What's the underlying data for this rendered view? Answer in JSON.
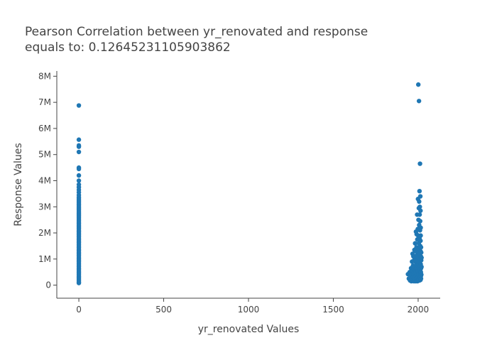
{
  "chart_data": {
    "type": "scatter",
    "title_lines": [
      "Pearson Correlation between yr_renovated and response",
      "equals to: 0.12645231105903862"
    ],
    "xlabel": "yr_renovated Values",
    "ylabel": "Response Values",
    "xlim": [
      -130,
      2130
    ],
    "ylim": [
      -500000,
      8200000
    ],
    "x_ticks": [
      0,
      500,
      1000,
      1500,
      2000
    ],
    "x_tick_labels": [
      "0",
      "500",
      "1000",
      "1500",
      "2000"
    ],
    "y_ticks": [
      0,
      1000000,
      2000000,
      3000000,
      4000000,
      5000000,
      6000000,
      7000000,
      8000000
    ],
    "y_tick_labels": [
      "0",
      "1M",
      "2M",
      "3M",
      "4M",
      "5M",
      "6M",
      "7M",
      "8M"
    ],
    "grid": false,
    "legend": "none",
    "marker_color": "#1f77b4",
    "series": [
      {
        "points": [
          [
            0,
            80000
          ],
          [
            0,
            120000
          ],
          [
            0,
            180000
          ],
          [
            0,
            240000
          ],
          [
            0,
            300000
          ],
          [
            0,
            360000
          ],
          [
            0,
            420000
          ],
          [
            0,
            480000
          ],
          [
            0,
            540000
          ],
          [
            0,
            600000
          ],
          [
            0,
            660000
          ],
          [
            0,
            720000
          ],
          [
            0,
            780000
          ],
          [
            0,
            840000
          ],
          [
            0,
            900000
          ],
          [
            0,
            960000
          ],
          [
            0,
            1020000
          ],
          [
            0,
            1080000
          ],
          [
            0,
            1140000
          ],
          [
            0,
            1200000
          ],
          [
            0,
            1260000
          ],
          [
            0,
            1320000
          ],
          [
            0,
            1380000
          ],
          [
            0,
            1440000
          ],
          [
            0,
            1500000
          ],
          [
            0,
            1560000
          ],
          [
            0,
            1620000
          ],
          [
            0,
            1680000
          ],
          [
            0,
            1740000
          ],
          [
            0,
            1800000
          ],
          [
            0,
            1860000
          ],
          [
            0,
            1920000
          ],
          [
            0,
            1980000
          ],
          [
            0,
            2040000
          ],
          [
            0,
            2100000
          ],
          [
            0,
            2160000
          ],
          [
            0,
            2220000
          ],
          [
            0,
            2280000
          ],
          [
            0,
            2340000
          ],
          [
            0,
            2400000
          ],
          [
            0,
            2460000
          ],
          [
            0,
            2520000
          ],
          [
            0,
            2580000
          ],
          [
            0,
            2640000
          ],
          [
            0,
            2700000
          ],
          [
            0,
            2760000
          ],
          [
            0,
            2820000
          ],
          [
            0,
            2880000
          ],
          [
            0,
            2940000
          ],
          [
            0,
            3000000
          ],
          [
            0,
            3060000
          ],
          [
            0,
            3120000
          ],
          [
            0,
            3180000
          ],
          [
            0,
            3240000
          ],
          [
            0,
            3300000
          ],
          [
            0,
            3360000
          ],
          [
            0,
            3450000
          ],
          [
            0,
            3550000
          ],
          [
            0,
            3650000
          ],
          [
            0,
            3750000
          ],
          [
            0,
            3850000
          ],
          [
            0,
            4000000
          ],
          [
            0,
            4200000
          ],
          [
            0,
            4450000
          ],
          [
            0,
            4500000
          ],
          [
            0,
            5100000
          ],
          [
            0,
            5300000
          ],
          [
            0,
            5350000
          ],
          [
            0,
            5570000
          ],
          [
            0,
            6880000
          ],
          [
            1940,
            420000
          ],
          [
            1945,
            250000
          ],
          [
            1950,
            500000
          ],
          [
            1952,
            180000
          ],
          [
            1955,
            320000
          ],
          [
            1958,
            650000
          ],
          [
            1960,
            150000
          ],
          [
            1962,
            400000
          ],
          [
            1964,
            900000
          ],
          [
            1965,
            250000
          ],
          [
            1967,
            1200000
          ],
          [
            1968,
            550000
          ],
          [
            1970,
            300000
          ],
          [
            1970,
            750000
          ],
          [
            1972,
            1100000
          ],
          [
            1973,
            450000
          ],
          [
            1975,
            150000
          ],
          [
            1975,
            600000
          ],
          [
            1976,
            950000
          ],
          [
            1978,
            1350000
          ],
          [
            1978,
            300000
          ],
          [
            1980,
            700000
          ],
          [
            1980,
            200000
          ],
          [
            1981,
            1100000
          ],
          [
            1982,
            1600000
          ],
          [
            1983,
            450000
          ],
          [
            1984,
            900000
          ],
          [
            1985,
            150000
          ],
          [
            1985,
            550000
          ],
          [
            1986,
            1300000
          ],
          [
            1987,
            2050000
          ],
          [
            1987,
            750000
          ],
          [
            1988,
            350000
          ],
          [
            1989,
            1000000
          ],
          [
            1990,
            180000
          ],
          [
            1990,
            600000
          ],
          [
            1990,
            1450000
          ],
          [
            1991,
            1950000
          ],
          [
            1992,
            800000
          ],
          [
            1992,
            420000
          ],
          [
            1993,
            1150000
          ],
          [
            1994,
            2700000
          ],
          [
            1994,
            280000
          ],
          [
            1995,
            650000
          ],
          [
            1995,
            1750000
          ],
          [
            1996,
            950000
          ],
          [
            1996,
            150000
          ],
          [
            1997,
            1350000
          ],
          [
            1997,
            500000
          ],
          [
            1998,
            2150000
          ],
          [
            1998,
            750000
          ],
          [
            1999,
            3300000
          ],
          [
            1999,
            300000
          ],
          [
            2000,
            1050000
          ],
          [
            2000,
            550000
          ],
          [
            2000,
            1900000
          ],
          [
            2001,
            7680000
          ],
          [
            2001,
            200000
          ],
          [
            2002,
            1250000
          ],
          [
            2002,
            2500000
          ],
          [
            2003,
            800000
          ],
          [
            2003,
            400000
          ],
          [
            2004,
            1600000
          ],
          [
            2004,
            2950000
          ],
          [
            2005,
            7050000
          ],
          [
            2005,
            650000
          ],
          [
            2005,
            1100000
          ],
          [
            2006,
            3200000
          ],
          [
            2006,
            350000
          ],
          [
            2006,
            2300000
          ],
          [
            2007,
            1400000
          ],
          [
            2007,
            900000
          ],
          [
            2008,
            3600000
          ],
          [
            2008,
            180000
          ],
          [
            2008,
            1800000
          ],
          [
            2009,
            2700000
          ],
          [
            2009,
            550000
          ],
          [
            2010,
            1200000
          ],
          [
            2010,
            3000000
          ],
          [
            2011,
            4650000
          ],
          [
            2011,
            750000
          ],
          [
            2011,
            2100000
          ],
          [
            2012,
            1500000
          ],
          [
            2012,
            300000
          ],
          [
            2012,
            2450000
          ],
          [
            2013,
            3400000
          ],
          [
            2013,
            1000000
          ],
          [
            2013,
            600000
          ],
          [
            2014,
            1700000
          ],
          [
            2014,
            200000
          ],
          [
            2014,
            2850000
          ],
          [
            2014,
            1300000
          ],
          [
            2015,
            450000
          ],
          [
            2015,
            800000
          ],
          [
            2015,
            1900000
          ],
          [
            2015,
            2200000
          ],
          [
            2016,
            1100000
          ],
          [
            2016,
            500000
          ],
          [
            2016,
            350000
          ],
          [
            2017,
            1450000
          ],
          [
            2017,
            650000
          ],
          [
            2017,
            250000
          ],
          [
            2018,
            950000
          ],
          [
            2018,
            1250000
          ],
          [
            2019,
            400000
          ],
          [
            2020,
            700000
          ],
          [
            2020,
            1050000
          ]
        ]
      }
    ]
  }
}
